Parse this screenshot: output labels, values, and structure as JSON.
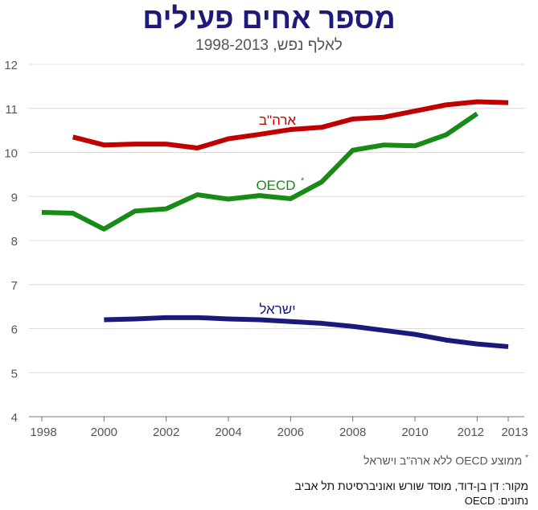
{
  "title": "מספר אחים פעילים",
  "subtitle": "לאלף נפש, 1998-2013",
  "footnote": "ממוצע OECD ללא ארה\"ב וישראל",
  "footnote_marker": "*",
  "source": "מקור:  דן בן-דוד, מוסד שורש ואוניברסיטת תל אביב",
  "data_source": "נתונים: OECD",
  "colors": {
    "usa": "#c00000",
    "oecd": "#168c16",
    "israel": "#1a1a7a",
    "grid": "#dcdcdc",
    "axis": "#777777"
  },
  "chart_data": {
    "type": "line",
    "title": "מספר אחים פעילים",
    "subtitle": "לאלף נפש, 1998-2013",
    "xlim": [
      1998,
      2013
    ],
    "ylim": [
      4,
      12
    ],
    "x_ticks": [
      1998,
      2000,
      2002,
      2004,
      2006,
      2008,
      2010,
      2012,
      2013
    ],
    "y_ticks": [
      4,
      5,
      6,
      7,
      8,
      9,
      10,
      11,
      12
    ],
    "grid": "horizontal",
    "series": [
      {
        "name": "ארה\"ב",
        "color": "#c00000",
        "x": [
          1999,
          2000,
          2001,
          2002,
          2003,
          2004,
          2005,
          2006,
          2007,
          2008,
          2009,
          2010,
          2011,
          2012,
          2013
        ],
        "values": [
          10.35,
          10.17,
          10.19,
          10.19,
          10.1,
          10.31,
          10.41,
          10.52,
          10.57,
          10.76,
          10.8,
          10.94,
          11.08,
          11.15,
          11.13
        ]
      },
      {
        "name": "OECD",
        "marker": "*",
        "color": "#168c16",
        "x": [
          1998,
          1999,
          2000,
          2001,
          2002,
          2003,
          2004,
          2005,
          2006,
          2007,
          2008,
          2009,
          2010,
          2011,
          2012
        ],
        "values": [
          8.64,
          8.62,
          8.26,
          8.67,
          8.72,
          9.04,
          8.94,
          9.02,
          8.95,
          9.33,
          10.05,
          10.17,
          10.15,
          10.4,
          10.88
        ]
      },
      {
        "name": "ישראל",
        "color": "#1a1a7a",
        "x": [
          2000,
          2001,
          2002,
          2003,
          2004,
          2005,
          2006,
          2007,
          2008,
          2009,
          2010,
          2011,
          2012,
          2013
        ],
        "values": [
          6.2,
          6.22,
          6.25,
          6.25,
          6.22,
          6.2,
          6.16,
          6.12,
          6.05,
          5.96,
          5.87,
          5.74,
          5.65,
          5.59
        ]
      }
    ]
  }
}
